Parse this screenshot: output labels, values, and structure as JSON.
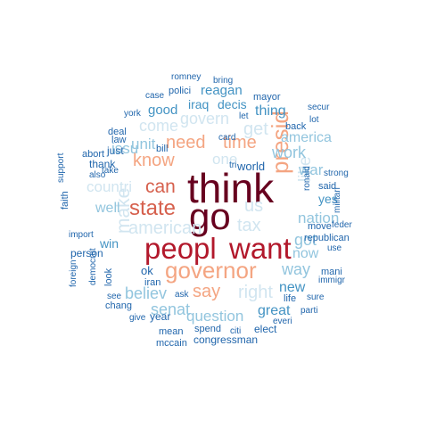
{
  "palette": {
    "c1": "#67001f",
    "c2": "#b2182b",
    "c3": "#d6604d",
    "c4": "#f4a582",
    "c5": "#fddbc7",
    "c6": "#d1e5f0",
    "c7": "#92c5de",
    "c8": "#4393c3",
    "c9": "#2166ac"
  },
  "words": [
    {
      "text": "think",
      "tier": "c1"
    },
    {
      "text": "go",
      "tier": "c1"
    },
    {
      "text": "peopl",
      "tier": "c2"
    },
    {
      "text": "want",
      "tier": "c2"
    },
    {
      "text": "state",
      "tier": "c3"
    },
    {
      "text": "can",
      "tier": "c3"
    },
    {
      "text": "governor",
      "tier": "c4"
    },
    {
      "text": "need",
      "tier": "c4"
    },
    {
      "text": "time",
      "tier": "c4"
    },
    {
      "text": "know",
      "tier": "c4"
    },
    {
      "text": "say",
      "tier": "c4"
    },
    {
      "text": "presid",
      "tier": "c4"
    },
    {
      "text": "american",
      "tier": "c6"
    },
    {
      "text": "make",
      "tier": "c6"
    },
    {
      "text": "countri",
      "tier": "c6"
    },
    {
      "text": "govern",
      "tier": "c6"
    },
    {
      "text": "come",
      "tier": "c6"
    },
    {
      "text": "get",
      "tier": "c6"
    },
    {
      "text": "us",
      "tier": "c6"
    },
    {
      "text": "tax",
      "tier": "c6"
    },
    {
      "text": "right",
      "tier": "c6"
    },
    {
      "text": "one",
      "tier": "c6"
    },
    {
      "text": "like",
      "tier": "c6"
    },
    {
      "text": "believ",
      "tier": "c7"
    },
    {
      "text": "senat",
      "tier": "c7"
    },
    {
      "text": "question",
      "tier": "c7"
    },
    {
      "text": "unit",
      "tier": "c7"
    },
    {
      "text": "issu",
      "tier": "c7"
    },
    {
      "text": "well",
      "tier": "c7"
    },
    {
      "text": "work",
      "tier": "c7"
    },
    {
      "text": "america",
      "tier": "c7"
    },
    {
      "text": "war",
      "tier": "c7"
    },
    {
      "text": "nation",
      "tier": "c7"
    },
    {
      "text": "got",
      "tier": "c7"
    },
    {
      "text": "now",
      "tier": "c7"
    },
    {
      "text": "way",
      "tier": "c7"
    },
    {
      "text": "new",
      "tier": "c8"
    },
    {
      "text": "great",
      "tier": "c8"
    },
    {
      "text": "thing",
      "tier": "c8"
    },
    {
      "text": "reagan",
      "tier": "c8"
    },
    {
      "text": "iraq",
      "tier": "c8"
    },
    {
      "text": "decis",
      "tier": "c8"
    },
    {
      "text": "good",
      "tier": "c8"
    },
    {
      "text": "win",
      "tier": "c8"
    },
    {
      "text": "yes",
      "tier": "c8"
    },
    {
      "text": "congressman",
      "tier": "c9"
    },
    {
      "text": "mccain",
      "tier": "c9"
    },
    {
      "text": "mean",
      "tier": "c9"
    },
    {
      "text": "spend",
      "tier": "c9"
    },
    {
      "text": "citi",
      "tier": "c9"
    },
    {
      "text": "elect",
      "tier": "c9"
    },
    {
      "text": "year",
      "tier": "c9"
    },
    {
      "text": "give",
      "tier": "c9"
    },
    {
      "text": "chang",
      "tier": "c9"
    },
    {
      "text": "look",
      "tier": "c9"
    },
    {
      "text": "democrat",
      "tier": "c9"
    },
    {
      "text": "foreign",
      "tier": "c9"
    },
    {
      "text": "person",
      "tier": "c9"
    },
    {
      "text": "import",
      "tier": "c9"
    },
    {
      "text": "faith",
      "tier": "c9"
    },
    {
      "text": "support",
      "tier": "c9"
    },
    {
      "text": "also",
      "tier": "c9"
    },
    {
      "text": "take",
      "tier": "c9"
    },
    {
      "text": "thank",
      "tier": "c9"
    },
    {
      "text": "just",
      "tier": "c9"
    },
    {
      "text": "abort",
      "tier": "c9"
    },
    {
      "text": "law",
      "tier": "c9"
    },
    {
      "text": "deal",
      "tier": "c9"
    },
    {
      "text": "york",
      "tier": "c9"
    },
    {
      "text": "case",
      "tier": "c9"
    },
    {
      "text": "polici",
      "tier": "c9"
    },
    {
      "text": "romney",
      "tier": "c9"
    },
    {
      "text": "bring",
      "tier": "c9"
    },
    {
      "text": "mayor",
      "tier": "c9"
    },
    {
      "text": "back",
      "tier": "c9"
    },
    {
      "text": "let",
      "tier": "c9"
    },
    {
      "text": "secur",
      "tier": "c9"
    },
    {
      "text": "lot",
      "tier": "c9"
    },
    {
      "text": "card",
      "tier": "c9"
    },
    {
      "text": "world",
      "tier": "c9"
    },
    {
      "text": "tri",
      "tier": "c9"
    },
    {
      "text": "bill",
      "tier": "c9"
    },
    {
      "text": "strong",
      "tier": "c9"
    },
    {
      "text": "said",
      "tier": "c9"
    },
    {
      "text": "ronald",
      "tier": "c9"
    },
    {
      "text": "militari",
      "tier": "c9"
    },
    {
      "text": "feder",
      "tier": "c9"
    },
    {
      "text": "use",
      "tier": "c9"
    },
    {
      "text": "move",
      "tier": "c9"
    },
    {
      "text": "republican",
      "tier": "c9"
    },
    {
      "text": "mani",
      "tier": "c9"
    },
    {
      "text": "immigr",
      "tier": "c9"
    },
    {
      "text": "sure",
      "tier": "c9"
    },
    {
      "text": "parti",
      "tier": "c9"
    },
    {
      "text": "everi",
      "tier": "c9"
    },
    {
      "text": "life",
      "tier": "c9"
    },
    {
      "text": "ask",
      "tier": "c9"
    },
    {
      "text": "iran",
      "tier": "c9"
    },
    {
      "text": "ok",
      "tier": "c9"
    },
    {
      "text": "see",
      "tier": "c9"
    }
  ]
}
